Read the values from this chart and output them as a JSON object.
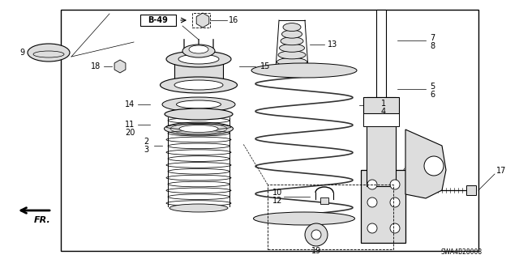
{
  "bg_color": "#ffffff",
  "line_color": "#000000",
  "gray": "#aaaaaa",
  "lgray": "#dddddd",
  "dgray": "#444444",
  "ref_code": "SWA4B28008",
  "b49_label": "B-49",
  "fr_label": "FR."
}
